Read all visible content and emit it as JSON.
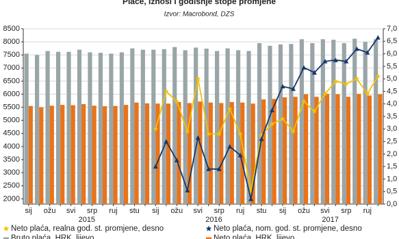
{
  "chart_data": {
    "type": "bar_line",
    "title": "Plaće, iznosi i godišnje stope promjene",
    "subtitle": "Izvor: Macrobond, DZS",
    "categories": [
      "sij",
      null,
      "ožu",
      null,
      "svi",
      null,
      "srp",
      null,
      "ruj",
      null,
      "stu",
      null,
      "sij",
      null,
      "ožu",
      null,
      "svi",
      null,
      "srp",
      null,
      "ruj",
      null,
      "stu",
      null,
      "sij",
      null,
      "ožu",
      null,
      "svi",
      null,
      "srp",
      null,
      "ruj",
      null
    ],
    "years": [
      "2015",
      "2016",
      "2017"
    ],
    "ylim": [
      1800,
      8500
    ],
    "yticks": [
      2000,
      2500,
      3000,
      3500,
      4000,
      4500,
      5000,
      5500,
      6000,
      6500,
      7000,
      7500,
      8000,
      8500
    ],
    "y2lim": [
      0,
      7
    ],
    "y2ticks": [
      {
        "value": 0,
        "label": "0,0"
      },
      {
        "value": 0.5,
        "label": "0,5"
      },
      {
        "value": 1,
        "label": "1,0"
      },
      {
        "value": 1.5,
        "label": "1,5"
      },
      {
        "value": 2,
        "label": "2,0"
      },
      {
        "value": 2.5,
        "label": "2,5"
      },
      {
        "value": 3,
        "label": "3,0"
      },
      {
        "value": 3.5,
        "label": "3,5"
      },
      {
        "value": 4,
        "label": "4,0"
      },
      {
        "value": 4.5,
        "label": "4,5"
      },
      {
        "value": 5,
        "label": "5,0"
      },
      {
        "value": 5.5,
        "label": "5,5"
      },
      {
        "value": 6,
        "label": "6,0"
      },
      {
        "value": 6.5,
        "label": "6,5"
      },
      {
        "value": 7,
        "label": "7,0"
      }
    ],
    "grid": true,
    "legend": "bottom",
    "series": [
      {
        "name": "Neto plaća, realna god. st. promjene, desno",
        "type": "line",
        "marker": "star",
        "axis": "y2",
        "color": "#f2c100",
        "values": [
          null,
          null,
          null,
          null,
          null,
          null,
          null,
          null,
          null,
          null,
          null,
          null,
          3.0,
          4.5,
          4.1,
          2.9,
          5.0,
          2.8,
          2.8,
          3.8,
          2.8,
          0.5,
          2.75,
          3.2,
          3.4,
          2.9,
          4.1,
          3.7,
          4.4,
          4.9,
          4.8,
          5.0,
          4.4,
          5.1
        ]
      },
      {
        "name": "Neto plaća, nom. god. st. promjene, desno",
        "type": "line",
        "marker": "triangle",
        "axis": "y2",
        "color": "#16386b",
        "values": [
          null,
          null,
          null,
          null,
          null,
          null,
          null,
          null,
          null,
          null,
          null,
          null,
          1.5,
          2.5,
          1.75,
          0.55,
          2.65,
          1.4,
          1.4,
          2.3,
          1.95,
          0.2,
          2.6,
          3.75,
          4.7,
          4.6,
          5.45,
          5.25,
          5.7,
          5.75,
          5.7,
          6.2,
          6.05,
          6.65
        ]
      },
      {
        "name": "Bruto plaća, HRK, lijevo",
        "type": "bar",
        "color": "#9aa5a8",
        "values": [
          7550,
          7500,
          7650,
          7620,
          7620,
          7700,
          7600,
          7580,
          7550,
          7600,
          7750,
          7700,
          7700,
          7720,
          7800,
          7680,
          7780,
          7740,
          7650,
          7750,
          7680,
          7650,
          7950,
          7850,
          7900,
          7920,
          8100,
          7950,
          8100,
          8080,
          7950,
          8120,
          8000,
          8100
        ]
      },
      {
        "name": "Neto plaća, HRK, lijevo",
        "type": "bar",
        "color": "#e8731a",
        "values": [
          5550,
          5500,
          5560,
          5590,
          5580,
          5620,
          5560,
          5540,
          5550,
          5590,
          5680,
          5650,
          5640,
          5640,
          5700,
          5660,
          5720,
          5680,
          5660,
          5700,
          5680,
          5640,
          5800,
          5820,
          5880,
          5900,
          6000,
          5900,
          6010,
          6000,
          5900,
          6010,
          5950,
          6000
        ]
      }
    ]
  }
}
